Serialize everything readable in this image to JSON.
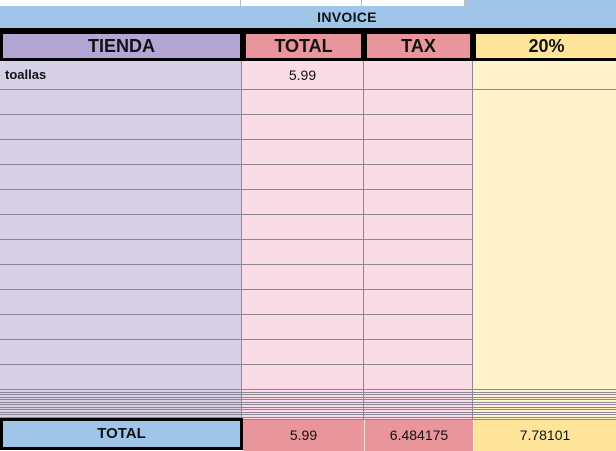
{
  "spreadsheet": {
    "banner": {
      "title": "INVOICE"
    },
    "header": {
      "columns": [
        {
          "label": "TIENDA"
        },
        {
          "label": "TOTAL"
        },
        {
          "label": "TAX"
        },
        {
          "label": "20%"
        }
      ]
    },
    "data_rows": [
      {
        "tienda": "toallas",
        "total": "5.99",
        "tax": "",
        "pct": ""
      }
    ],
    "empty_rows": 12,
    "collapsed_rows": 12,
    "footer": {
      "label": "TOTAL",
      "total": "5.99",
      "tax": "6.484175",
      "pct": "7.78101"
    },
    "colors": {
      "banner_blue": "#9FC5E8",
      "footer_blue": "#9FC5E8",
      "header_purple": "#B3A6D4",
      "header_pink": "#E8969B",
      "header_yellow": "#FFE599",
      "body_purple": "#D6D1E6",
      "body_pink": "#FADCE6",
      "body_yellow": "#FFF3CE",
      "grid_line": "#8C8696",
      "top_strip_line": "#B9B9B9",
      "footer_divider": "rgba(255,255,255,0.7)"
    }
  }
}
